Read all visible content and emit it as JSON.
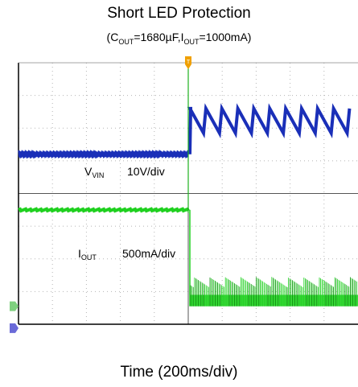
{
  "chart_data": {
    "type": "line",
    "title": "Short LED Protection",
    "subtitle": {
      "parts": [
        {
          "text": "(C",
          "sub": false
        },
        {
          "text": "OUT",
          "sub": true
        },
        {
          "text": "=1680µF,I",
          "sub": false
        },
        {
          "text": "OUT",
          "sub": true
        },
        {
          "text": "=1000mA)",
          "sub": false
        }
      ]
    },
    "xlabel": "Time (200ms/div)",
    "ylabel": "",
    "grid": true,
    "x_divisions": 10,
    "y_divisions": 8,
    "trigger_time_div": 5.0,
    "series": [
      {
        "name_parts": [
          {
            "text": "V",
            "sub": false
          },
          {
            "text": "VIN",
            "sub": true
          }
        ],
        "scale": "10V/div",
        "color": "#1a2fb8",
        "before": {
          "level_div": 5.2,
          "ripple_div": 0.13,
          "freq_per_div": 15
        },
        "after": {
          "peak_div": 6.6,
          "drop_div": 0.75,
          "period_div": 0.47,
          "fall_div": 0.07
        }
      },
      {
        "name_parts": [
          {
            "text": "I",
            "sub": false
          },
          {
            "text": "OUT",
            "sub": true
          }
        ],
        "scale": "500mA/div",
        "color": "#1fd01f",
        "before": {
          "level_div": 3.5,
          "ripple_div": 0.06
        },
        "after": {
          "base_div": 0.55,
          "spike_div": 0.9
        }
      }
    ],
    "markers": {
      "trigger_label": "T",
      "ch1_label": "1",
      "ch2_label": "2"
    },
    "colors": {
      "grid": "#b5b5b5",
      "frame": "#000000",
      "trigger": "#f0a000",
      "ch_marker_green": "#7fd07f",
      "ch_marker_blue": "#6a6ad8"
    }
  }
}
